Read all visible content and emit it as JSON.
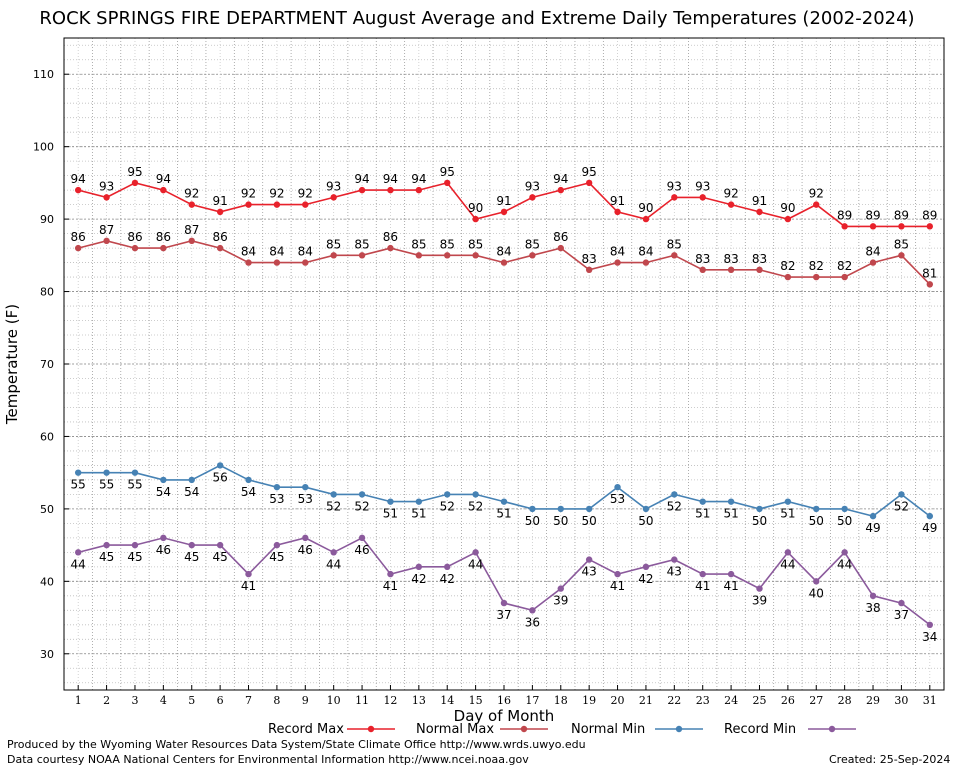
{
  "chart_data": {
    "type": "line",
    "title": "ROCK SPRINGS FIRE DEPARTMENT August Average and Extreme Daily Temperatures (2002-2024)",
    "xlabel": "Day of Month",
    "ylabel": "Temperature (F)",
    "x": [
      1,
      2,
      3,
      4,
      5,
      6,
      7,
      8,
      9,
      10,
      11,
      12,
      13,
      14,
      15,
      16,
      17,
      18,
      19,
      20,
      21,
      22,
      23,
      24,
      25,
      26,
      27,
      28,
      29,
      30,
      31
    ],
    "xlim": [
      0.5,
      31.5
    ],
    "ylim": [
      25,
      115
    ],
    "yticks": [
      30,
      40,
      50,
      60,
      70,
      80,
      90,
      100,
      110
    ],
    "grid": true,
    "legend_position": "bottom",
    "series": [
      {
        "name": "Record Max",
        "color": "#e8212b",
        "values": [
          94,
          93,
          95,
          94,
          92,
          91,
          92,
          92,
          92,
          93,
          94,
          94,
          94,
          95,
          90,
          91,
          93,
          94,
          95,
          91,
          90,
          93,
          93,
          92,
          91,
          90,
          92,
          89,
          89,
          89,
          89
        ]
      },
      {
        "name": "Normal Max",
        "color": "#c0474d",
        "values": [
          86,
          87,
          86,
          86,
          87,
          86,
          84,
          84,
          84,
          85,
          85,
          86,
          85,
          85,
          85,
          84,
          85,
          86,
          83,
          84,
          84,
          85,
          83,
          83,
          83,
          82,
          82,
          82,
          84,
          85,
          81
        ]
      },
      {
        "name": "Normal Min",
        "color": "#4682b4",
        "values": [
          55,
          55,
          55,
          54,
          54,
          56,
          54,
          53,
          53,
          52,
          52,
          51,
          51,
          52,
          52,
          51,
          50,
          50,
          50,
          53,
          50,
          52,
          51,
          51,
          50,
          51,
          50,
          50,
          49,
          52,
          49
        ]
      },
      {
        "name": "Record Min",
        "color": "#8b5a9c",
        "values": [
          44,
          45,
          45,
          46,
          45,
          45,
          41,
          45,
          46,
          44,
          46,
          41,
          42,
          42,
          44,
          37,
          36,
          39,
          43,
          41,
          42,
          43,
          41,
          41,
          39,
          44,
          40,
          44,
          38,
          37,
          34
        ]
      }
    ]
  },
  "footer": {
    "produced_by": "Produced by the Wyoming Water Resources Data System/State Climate Office http://www.wrds.uwyo.edu",
    "courtesy": "Data courtesy NOAA National Centers for Environmental Information http://www.ncei.noaa.gov",
    "created": "Created: 25-Sep-2024"
  }
}
